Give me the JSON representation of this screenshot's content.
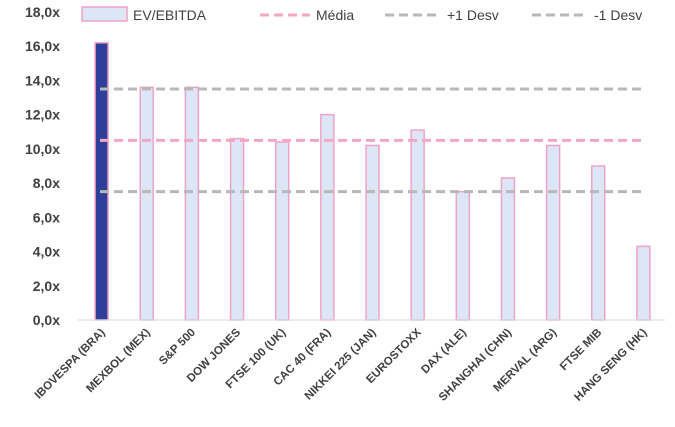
{
  "chart_data": {
    "type": "bar",
    "categories": [
      "IBOVESPA (BRA)",
      "MEXBOL (MEX)",
      "S&P 500",
      "DOW JONES",
      "FTSE 100 (UK)",
      "CAC 40 (FRA)",
      "NIKKEI 225 (JAN)",
      "EUROSTOXX",
      "DAX (ALE)",
      "SHANGHAI (CHN)",
      "MERVAL (ARG)",
      "FTSE MIB",
      "HANG SENG (HK)"
    ],
    "series": [
      {
        "name": "EV/EBITDA",
        "values": [
          16.2,
          13.6,
          13.6,
          10.6,
          10.4,
          12.0,
          10.2,
          11.1,
          7.5,
          8.3,
          10.2,
          9.0,
          4.3
        ]
      }
    ],
    "reference_lines": [
      {
        "name": "Média",
        "value": 10.5,
        "color": "#f4a7c4"
      },
      {
        "name": "+1 Desv",
        "value": 13.5,
        "color": "#b8b8b8"
      },
      {
        "name": "-1 Desv",
        "value": 7.5,
        "color": "#b8b8b8"
      }
    ],
    "ylim": [
      0,
      18
    ],
    "yticks": [
      0,
      2,
      4,
      6,
      8,
      10,
      12,
      14,
      16,
      18
    ],
    "ytick_labels": [
      "0,0x",
      "2,0x",
      "4,0x",
      "6,0x",
      "8,0x",
      "10,0x",
      "12,0x",
      "14,0x",
      "16,0x",
      "18,0x"
    ],
    "highlight_index": 0,
    "colors": {
      "bar_fill": "#dce6f7",
      "bar_stroke": "#f0a3c6",
      "highlight_fill": "#2e3f99",
      "highlight_stroke": "#f0a3c6",
      "axis": "#d9d9d9"
    },
    "legend_position": "top",
    "xlabel": "",
    "ylabel": "",
    "title": ""
  }
}
